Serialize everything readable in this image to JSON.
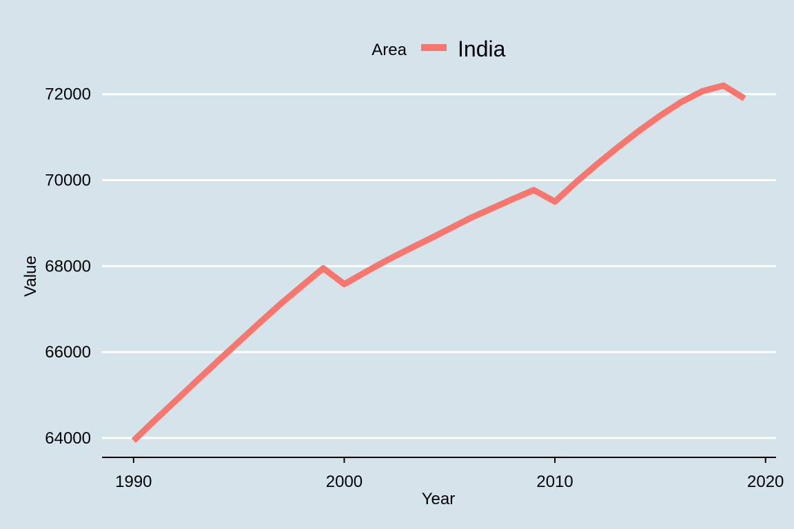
{
  "chart_data": {
    "type": "line",
    "xlabel": "Year",
    "ylabel": "Value",
    "xlim": [
      1988.5,
      2020.5
    ],
    "ylim": [
      63550,
      72300
    ],
    "xticks": [
      1990,
      2000,
      2010,
      2020
    ],
    "yticks": [
      64000,
      66000,
      68000,
      70000,
      72000
    ],
    "grid": "horizontal",
    "legend": {
      "title": "Area",
      "position": "top"
    },
    "series": [
      {
        "name": "India",
        "color": "#f8766d",
        "x": [
          1990,
          1991,
          1992,
          1993,
          1994,
          1995,
          1996,
          1997,
          1998,
          1999,
          2000,
          2001,
          2002,
          2003,
          2004,
          2005,
          2006,
          2007,
          2008,
          2009,
          2010,
          2011,
          2012,
          2013,
          2014,
          2015,
          2016,
          2017,
          2018,
          2019
        ],
        "values": [
          63940,
          64410,
          64870,
          65330,
          65790,
          66240,
          66690,
          67130,
          67540,
          67950,
          67580,
          67860,
          68130,
          68380,
          68620,
          68870,
          69120,
          69340,
          69560,
          69770,
          69500,
          69950,
          70370,
          70770,
          71150,
          71500,
          71820,
          72070,
          72200,
          71900
        ]
      }
    ]
  }
}
